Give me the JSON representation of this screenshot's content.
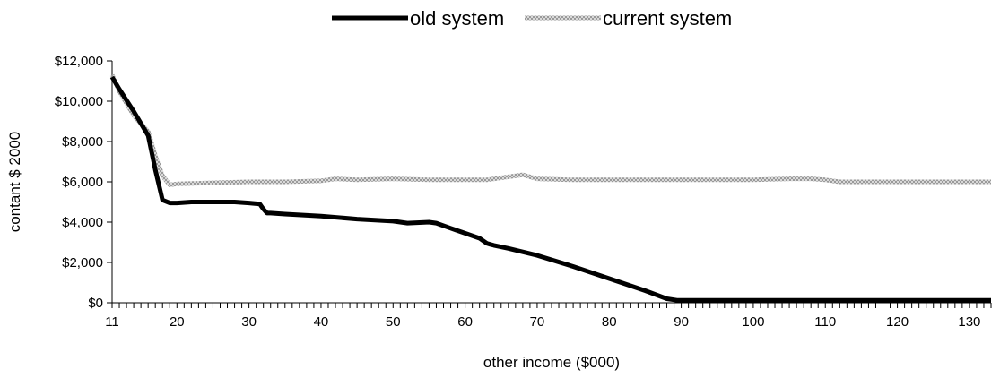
{
  "chart_data": {
    "type": "line",
    "xlabel": "other income ($000)",
    "ylabel": "contant $ 2000",
    "xlim": [
      11,
      133
    ],
    "ylim": [
      0,
      12000
    ],
    "x_ticks": [
      11,
      20,
      30,
      40,
      50,
      60,
      70,
      80,
      90,
      100,
      110,
      120,
      130
    ],
    "y_ticks": [
      0,
      2000,
      4000,
      6000,
      8000,
      10000,
      12000
    ],
    "y_tick_labels": [
      "$0",
      "$2,000",
      "$4,000",
      "$6,000",
      "$8,000",
      "$10,000",
      "$12,000"
    ],
    "grid": false,
    "legend_position": "top-center",
    "series": [
      {
        "name": "old system",
        "color": "#000000",
        "style": "solid-thick",
        "x": [
          11,
          12,
          14,
          16,
          17,
          18,
          19,
          20,
          22,
          24,
          26,
          28,
          30,
          31.5,
          32,
          32.5,
          33,
          35,
          40,
          45,
          50,
          52,
          55,
          56,
          58,
          60,
          62,
          63,
          63.5,
          64,
          66,
          70,
          75,
          80,
          85,
          88,
          89.5,
          90,
          100,
          110,
          120,
          133
        ],
        "values": [
          11200,
          10600,
          9500,
          8300,
          6600,
          5100,
          4950,
          4950,
          5000,
          5000,
          5000,
          5000,
          4950,
          4900,
          4650,
          4450,
          4450,
          4400,
          4300,
          4150,
          4050,
          3950,
          4000,
          3950,
          3700,
          3450,
          3200,
          2950,
          2900,
          2850,
          2700,
          2350,
          1800,
          1200,
          600,
          200,
          120,
          120,
          120,
          120,
          120,
          120
        ]
      },
      {
        "name": "current system",
        "color": "#b0b0b0",
        "style": "dotted-thick",
        "x": [
          11,
          12,
          14,
          16,
          17,
          18,
          19,
          20,
          25,
          30,
          35,
          40,
          42,
          45,
          50,
          55,
          60,
          63,
          65,
          68,
          70,
          75,
          80,
          85,
          90,
          95,
          100,
          105,
          108,
          110,
          112,
          115,
          120,
          125,
          133
        ],
        "values": [
          11300,
          10500,
          9300,
          8500,
          7300,
          6300,
          5850,
          5900,
          5950,
          6000,
          6000,
          6050,
          6150,
          6100,
          6150,
          6100,
          6100,
          6100,
          6200,
          6350,
          6150,
          6100,
          6100,
          6100,
          6100,
          6100,
          6100,
          6150,
          6150,
          6100,
          6000,
          6000,
          6000,
          6000,
          6000
        ]
      }
    ]
  }
}
